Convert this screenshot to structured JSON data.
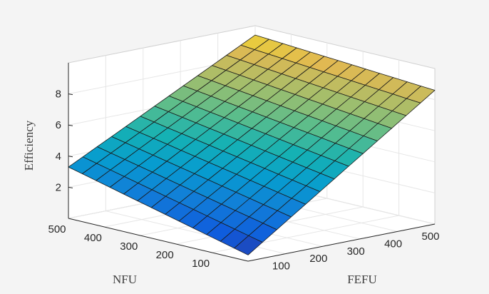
{
  "chart_data": {
    "type": "surface",
    "title": "",
    "xlabel": "FEFU",
    "ylabel": "NFU",
    "zlabel": "Efficiency",
    "x_ticks": [
      100,
      200,
      300,
      400,
      500
    ],
    "y_ticks": [
      100,
      200,
      300,
      400,
      500
    ],
    "z_ticks": [
      2,
      4,
      6,
      8
    ],
    "x_range": [
      0,
      500
    ],
    "y_range": [
      0,
      500
    ],
    "z_range": [
      0,
      10
    ],
    "grid": true,
    "colormap": "parula",
    "x": [
      0,
      38.5,
      76.9,
      115.4,
      153.8,
      192.3,
      230.8,
      269.2,
      307.7,
      346.2,
      384.6,
      423.1,
      461.5,
      500
    ],
    "y": [
      0,
      38.5,
      76.9,
      115.4,
      153.8,
      192.3,
      230.8,
      269.2,
      307.7,
      346.2,
      384.6,
      423.1,
      461.5,
      500
    ],
    "z_corners": {
      "fefu0_nfu0": 0.4,
      "fefu500_nfu0": 8.6,
      "fefu0_nfu500": 3.3,
      "fefu500_nfu500": 9.4
    }
  },
  "colors": {
    "background": "#f4f4f4",
    "axes_background": "#ffffff",
    "grid": "#e6e6e6",
    "edge": "#1a1a1a",
    "colormap_low": "#2b48f2",
    "colormap_mid": "#2fc6c0",
    "colormap_high": "#f6f22c"
  }
}
